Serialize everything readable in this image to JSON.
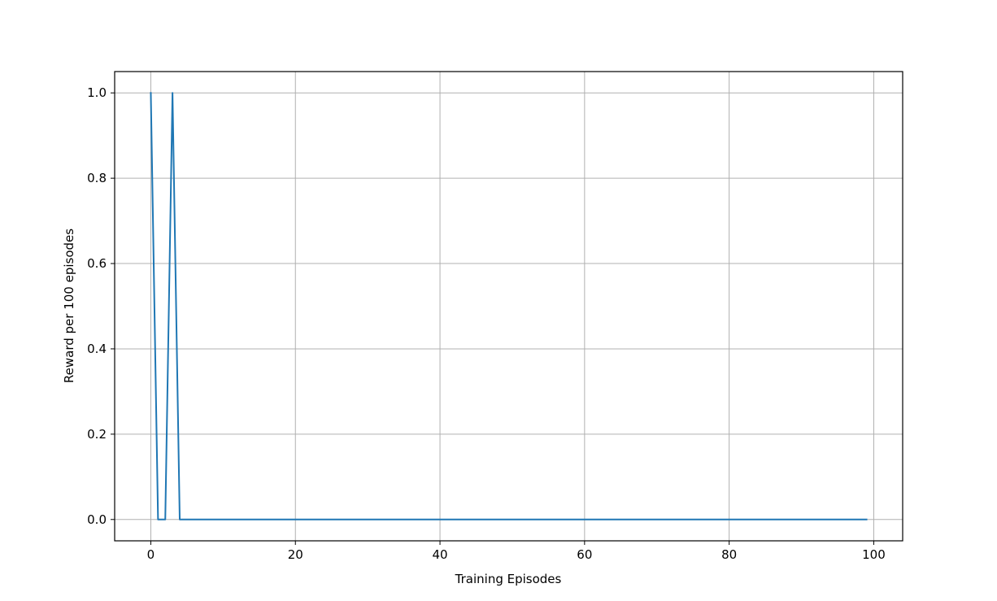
{
  "chart_data": {
    "type": "line",
    "title": "",
    "xlabel": "Training Episodes",
    "ylabel": "Reward per 100 episodes",
    "xlim": [
      -5,
      104
    ],
    "ylim": [
      -0.05,
      1.05
    ],
    "xticks": [
      0,
      20,
      40,
      60,
      80,
      100
    ],
    "xtick_labels": [
      "0",
      "20",
      "40",
      "60",
      "80",
      "100"
    ],
    "yticks": [
      0.0,
      0.2,
      0.4,
      0.6,
      0.8,
      1.0
    ],
    "ytick_labels": [
      "0.0",
      "0.2",
      "0.4",
      "0.6",
      "0.8",
      "1.0"
    ],
    "grid": true,
    "legend": false,
    "series": [
      {
        "color": "#1f77b4",
        "x": [
          0,
          1,
          2,
          3,
          4,
          99
        ],
        "y": [
          1.0,
          0.0,
          0.0,
          1.0,
          0.0,
          0.0
        ]
      }
    ]
  }
}
